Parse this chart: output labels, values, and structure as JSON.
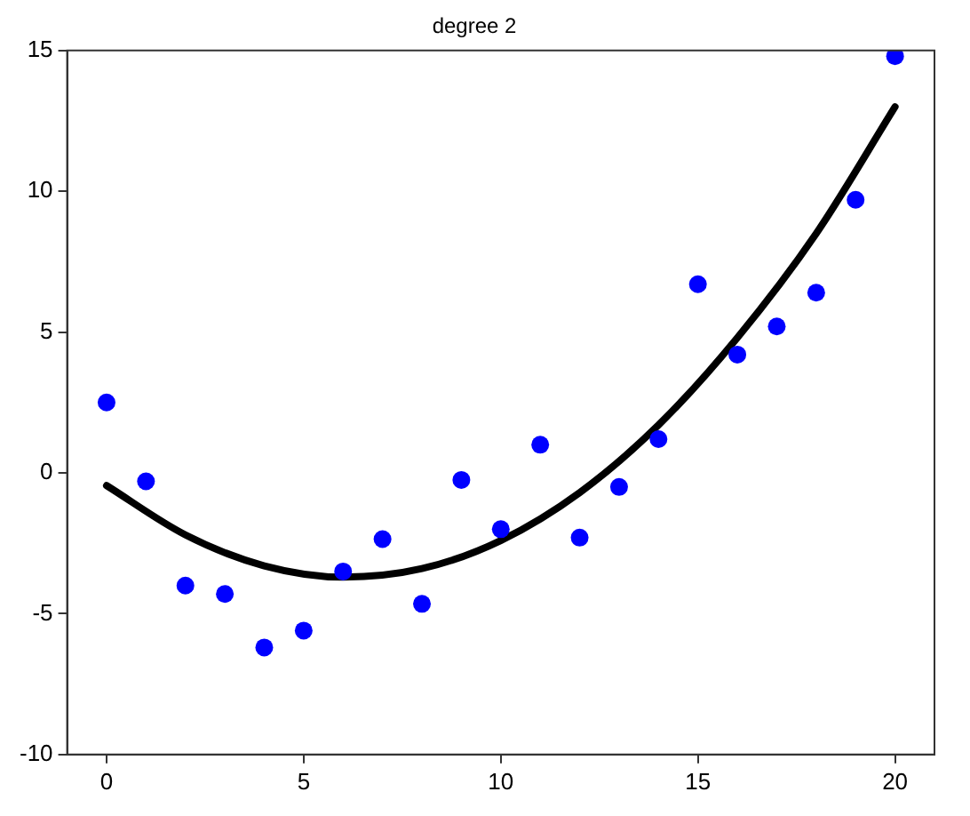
{
  "chart_data": {
    "type": "scatter",
    "title": "degree 2",
    "xlim": [
      -1,
      21
    ],
    "xticks": [
      0,
      5,
      10,
      15,
      20
    ],
    "ylim": [
      -10,
      15
    ],
    "yticks": [
      -10,
      -5,
      0,
      5,
      10,
      15
    ],
    "grid": false,
    "legend": false,
    "series": [
      {
        "color": "#0000ff",
        "marker": "circle",
        "x": [
          0,
          1,
          2,
          3,
          4,
          5,
          6,
          7,
          8,
          9,
          10,
          11,
          12,
          13,
          14,
          15,
          16,
          17,
          18,
          19,
          20
        ],
        "values": [
          2.5,
          -0.3,
          -4.0,
          -4.3,
          -6.2,
          -5.6,
          -3.5,
          -2.35,
          -4.65,
          -0.25,
          -2.0,
          1.0,
          -2.3,
          -0.5,
          1.2,
          6.7,
          4.2,
          5.2,
          6.4,
          9.7,
          14.8
        ]
      },
      {
        "type": "line",
        "color": "#000000",
        "line_style": "solid",
        "marker": "none",
        "x": [
          0,
          2,
          4,
          6,
          8,
          10,
          12,
          14,
          16,
          18,
          20
        ],
        "values": [
          -0.45,
          -2.2,
          -3.3,
          -3.7,
          -3.4,
          -2.4,
          -0.7,
          1.7,
          4.8,
          8.5,
          13.0
        ]
      }
    ]
  }
}
